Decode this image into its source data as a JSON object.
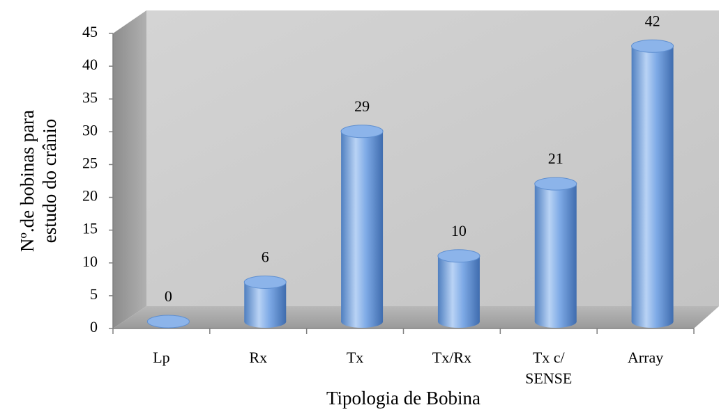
{
  "chart_data": {
    "type": "bar",
    "style": "3d-cylinder",
    "categories": [
      "Lp",
      "Rx",
      "Tx",
      "Tx/Rx",
      "Tx c/ SENSE",
      "Array"
    ],
    "values": [
      0,
      6,
      29,
      10,
      21,
      42
    ],
    "color": "#6f9fdc",
    "x_label": "Tipologia de Bobina",
    "y_label": "Nº.de bobinas para estudo do crânio",
    "ylim": [
      0,
      45
    ],
    "yticks": [
      0,
      5,
      10,
      15,
      20,
      25,
      30,
      35,
      40,
      45
    ]
  }
}
